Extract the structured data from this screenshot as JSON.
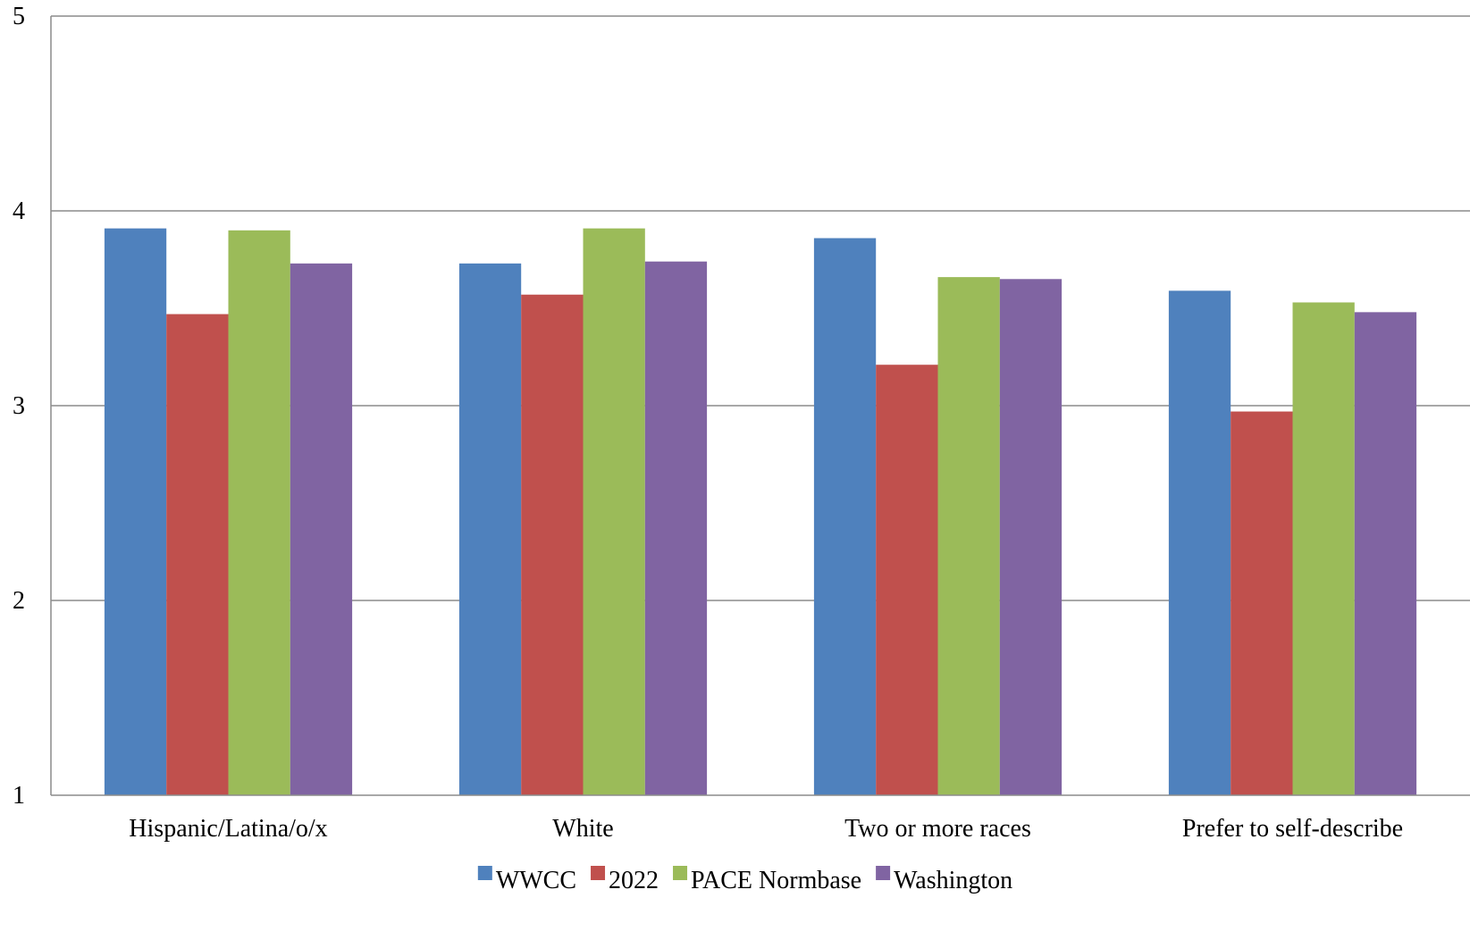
{
  "chart_data": {
    "type": "bar",
    "categories": [
      "Hispanic/Latina/o/x",
      "White",
      "Two or more races",
      "Prefer to self-describe"
    ],
    "series": [
      {
        "name": "WWCC",
        "color": "#4F81BD",
        "values": [
          3.91,
          3.73,
          3.86,
          3.59
        ]
      },
      {
        "name": "2022",
        "color": "#C0504D",
        "values": [
          3.47,
          3.57,
          3.21,
          2.97
        ]
      },
      {
        "name": "PACE Normbase",
        "color": "#9BBB59",
        "values": [
          3.9,
          3.91,
          3.66,
          3.53
        ]
      },
      {
        "name": "Washington",
        "color": "#8064A2",
        "values": [
          3.73,
          3.74,
          3.65,
          3.48
        ]
      }
    ],
    "ylim": [
      1,
      5
    ],
    "yticks": [
      "1",
      "2",
      "3",
      "4",
      "5"
    ],
    "grid": true,
    "legend_position": "bottom"
  }
}
